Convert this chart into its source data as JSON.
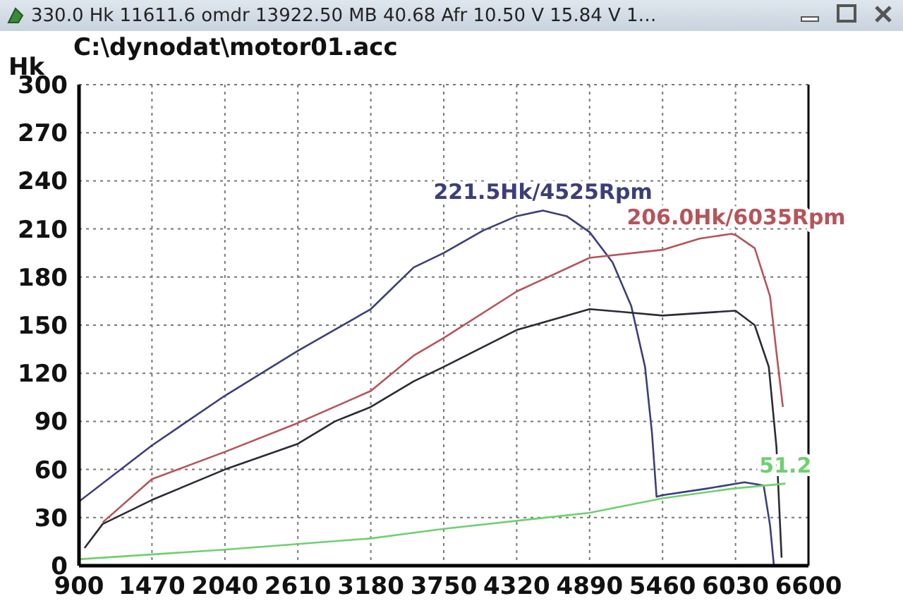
{
  "chart_data": {
    "type": "line",
    "title": "C:\\dynodat\\motor01.acc",
    "ylabel": "Hk",
    "annotations": [
      "330.0 Hk 11611.6 omdr 13922.50 MB 40.68 Afr 10.50 V 15.84 V 1…",
      {
        "text": "221.5Hk/4525Rpm",
        "x": 4525,
        "y": 221.5
      },
      {
        "text": "206.0Hk/6035Rpm",
        "x": 6035,
        "y": 206
      },
      {
        "text": "51.2",
        "x": 6420,
        "y": 51.2
      }
    ],
    "series": [
      {
        "color": "#3b3f78",
        "x": [
          900,
          1470,
          2040,
          2610,
          3180,
          3515,
          3750,
          4057,
          4320,
          4525,
          4710,
          4890,
          5070,
          5215,
          5323,
          5377,
          5413,
          5460,
          5800,
          6100,
          6250,
          6300,
          6330
        ],
        "values": [
          40,
          75,
          106,
          134,
          160,
          186,
          195,
          209,
          218,
          221.5,
          218,
          208,
          189,
          162,
          124,
          83,
          43,
          44,
          48,
          52,
          50,
          25,
          0
        ]
      },
      {
        "color": "#b5545a",
        "x": [
          1085,
          1470,
          2040,
          2610,
          3180,
          3515,
          3750,
          4320,
          4890,
          5460,
          5750,
          6000,
          6035,
          6180,
          6300,
          6350,
          6400
        ],
        "values": [
          27,
          54,
          71,
          89,
          109,
          131,
          142,
          171,
          192,
          197,
          204,
          207,
          206,
          198,
          168,
          133,
          99
        ]
      },
      {
        "color": "#2b2b35",
        "x": [
          943,
          1085,
          1470,
          2040,
          2610,
          2900,
          3180,
          3515,
          3750,
          4320,
          4890,
          5180,
          5460,
          6030,
          6180,
          6290,
          6350,
          6390
        ],
        "values": [
          11,
          26,
          41,
          60,
          76,
          90,
          99,
          115,
          124,
          147,
          160,
          158,
          156,
          159,
          150,
          124,
          74,
          5
        ]
      },
      {
        "color": "#6fd06f",
        "x": [
          900,
          2040,
          3180,
          3750,
          4890,
          5460,
          6000,
          6420
        ],
        "values": [
          4,
          10,
          17,
          23,
          33,
          42,
          48,
          51.2
        ]
      }
    ],
    "xlim": [
      900,
      6600
    ],
    "xticks": [
      900,
      1470,
      2040,
      2610,
      3180,
      3750,
      4320,
      4890,
      5460,
      6030,
      6600
    ],
    "ylim": [
      0,
      300
    ],
    "yticks": [
      0,
      30,
      60,
      90,
      120,
      150,
      180,
      210,
      240,
      270,
      300
    ],
    "grid": true,
    "line_style": "solid"
  }
}
